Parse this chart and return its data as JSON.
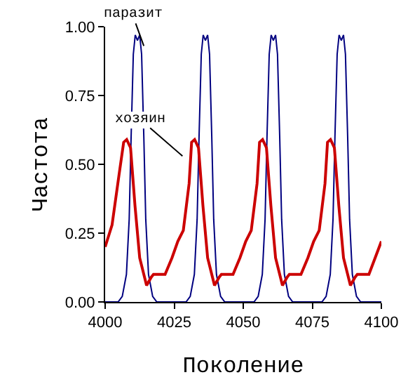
{
  "chart_data": {
    "type": "line",
    "xlabel": "Поколение",
    "ylabel": "Частота",
    "xlim": [
      4000,
      4100
    ],
    "xticks": [
      4000,
      4025,
      4050,
      4075,
      4100
    ],
    "ylim": [
      0,
      1
    ],
    "yticks": [
      {
        "value": 0,
        "label": "0.00"
      },
      {
        "value": 0.25,
        "label": "0.25"
      },
      {
        "value": 0.5,
        "label": "0.50"
      },
      {
        "value": 0.75,
        "label": "0.75"
      },
      {
        "value": 1,
        "label": "1.00"
      }
    ],
    "legend": false,
    "marker": "none",
    "line_style": "solid",
    "annotations": [
      {
        "text": "паразит",
        "x": 4014,
        "y": 0.93
      },
      {
        "text": "хозяин",
        "x": 4028,
        "y": 0.53
      }
    ],
    "series": [
      {
        "color": "#000080",
        "x": [
          4000,
          4004.7,
          4006.2,
          4007.7,
          4008.7,
          4009.4,
          4010.2,
          4010.9,
          4011.7,
          4012.5,
          4013.2,
          4014,
          4014.7,
          4015.7,
          4017.2,
          4018.7,
          4029.3,
          4030.8,
          4032.3,
          4033.3,
          4034,
          4034.8,
          4035.5,
          4036.3,
          4037.1,
          4037.8,
          4038.6,
          4039.3,
          4040.3,
          4041.8,
          4043.3,
          4053.9,
          4055.4,
          4056.9,
          4057.9,
          4058.6,
          4059.4,
          4060.1,
          4060.9,
          4061.7,
          4062.4,
          4063.2,
          4063.9,
          4064.9,
          4066.4,
          4067.9,
          4078.5,
          4080,
          4081.5,
          4082.5,
          4083.2,
          4084,
          4084.7,
          4085.5,
          4086.3,
          4087,
          4087.8,
          4088.5,
          4089.5,
          4091,
          4092.5,
          4100
        ],
        "values": [
          0,
          0,
          0.02,
          0.1,
          0.3,
          0.6,
          0.9,
          0.97,
          0.95,
          0.97,
          0.9,
          0.6,
          0.3,
          0.1,
          0.02,
          0,
          0,
          0.02,
          0.1,
          0.3,
          0.6,
          0.9,
          0.97,
          0.95,
          0.97,
          0.9,
          0.6,
          0.3,
          0.1,
          0.02,
          0,
          0,
          0.02,
          0.1,
          0.3,
          0.6,
          0.9,
          0.97,
          0.95,
          0.97,
          0.9,
          0.6,
          0.3,
          0.1,
          0.02,
          0,
          0,
          0.02,
          0.1,
          0.3,
          0.6,
          0.9,
          0.97,
          0.95,
          0.97,
          0.9,
          0.6,
          0.3,
          0.1,
          0.02,
          0,
          0
        ]
      },
      {
        "color": "#cc0000",
        "x": [
          4000,
          4002.5,
          4005,
          4006.7,
          4007.8,
          4009.2,
          4010.8,
          4012.5,
          4015,
          4016.7,
          4017.5,
          4021.7,
          4024.2,
          4026.3,
          4028.3,
          4030.4,
          4031.3,
          4032.4,
          4033.8,
          4035.4,
          4037.1,
          4039.6,
          4041.3,
          4042.1,
          4046.3,
          4048.8,
          4050.9,
          4052.9,
          4055,
          4055.9,
          4057,
          4058.4,
          4060,
          4061.7,
          4064.2,
          4065.9,
          4066.7,
          4070.9,
          4073.4,
          4075.5,
          4077.5,
          4079.6,
          4080.5,
          4081.6,
          4083,
          4084.6,
          4086.3,
          4088.8,
          4090.5,
          4091.3,
          4095.5,
          4100
        ],
        "values": [
          0.2,
          0.28,
          0.46,
          0.58,
          0.59,
          0.56,
          0.35,
          0.16,
          0.06,
          0.09,
          0.1,
          0.1,
          0.16,
          0.22,
          0.26,
          0.43,
          0.58,
          0.59,
          0.56,
          0.35,
          0.16,
          0.06,
          0.09,
          0.1,
          0.1,
          0.16,
          0.22,
          0.26,
          0.43,
          0.58,
          0.59,
          0.56,
          0.35,
          0.16,
          0.06,
          0.09,
          0.1,
          0.1,
          0.16,
          0.22,
          0.26,
          0.43,
          0.58,
          0.59,
          0.56,
          0.35,
          0.16,
          0.06,
          0.09,
          0.1,
          0.1,
          0.22
        ]
      }
    ]
  }
}
